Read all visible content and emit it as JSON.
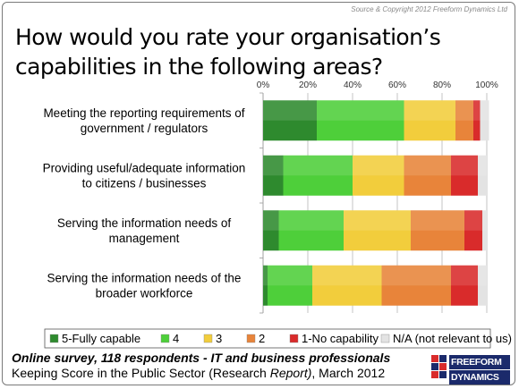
{
  "source": "Source & Copyright 2012 Freeform Dynamics Ltd",
  "title": "How would you rate your organisation’s capabilities in the following areas?",
  "footer": {
    "line1": "Online survey, 118 respondents - IT and business professionals",
    "line2_prefix": "Keeping Score in the Public Sector (Research ",
    "line2_italic": "Report)",
    "line2_suffix": ", March 2012"
  },
  "logo": {
    "line1": "FREEFORM",
    "line2": "DYNAMICS"
  },
  "chart_data": {
    "type": "bar",
    "orientation": "horizontal",
    "stacked": true,
    "xlim": [
      0,
      100
    ],
    "x_ticks": [
      "0%",
      "20%",
      "40%",
      "60%",
      "80%",
      "100%"
    ],
    "x_axis_position": "top",
    "grid": true,
    "legend_position": "bottom",
    "categories": [
      [
        "Meeting the reporting requirements of",
        "government / regulators"
      ],
      [
        "Providing useful/adequate information",
        "to citizens / businesses"
      ],
      [
        "Serving the information needs of",
        "management"
      ],
      [
        "Serving the information needs of the",
        "broader workforce"
      ]
    ],
    "series": [
      {
        "name": "5-Fully capable",
        "color": "#2e8a2e",
        "values": [
          24,
          9,
          7,
          2
        ]
      },
      {
        "name": "4",
        "color": "#4ecf3a",
        "values": [
          39,
          31,
          29,
          20
        ]
      },
      {
        "name": "3",
        "color": "#f2cd3c",
        "values": [
          23,
          23,
          30,
          31
        ]
      },
      {
        "name": "2",
        "color": "#e8843a",
        "values": [
          8,
          21,
          24,
          31
        ]
      },
      {
        "name": "1-No capability",
        "color": "#d92b2b",
        "values": [
          3,
          12,
          8,
          12
        ]
      },
      {
        "name": "N/A (not relevant to us)",
        "color": "#e3e3e3",
        "values": [
          4,
          4,
          2,
          4
        ]
      }
    ]
  }
}
